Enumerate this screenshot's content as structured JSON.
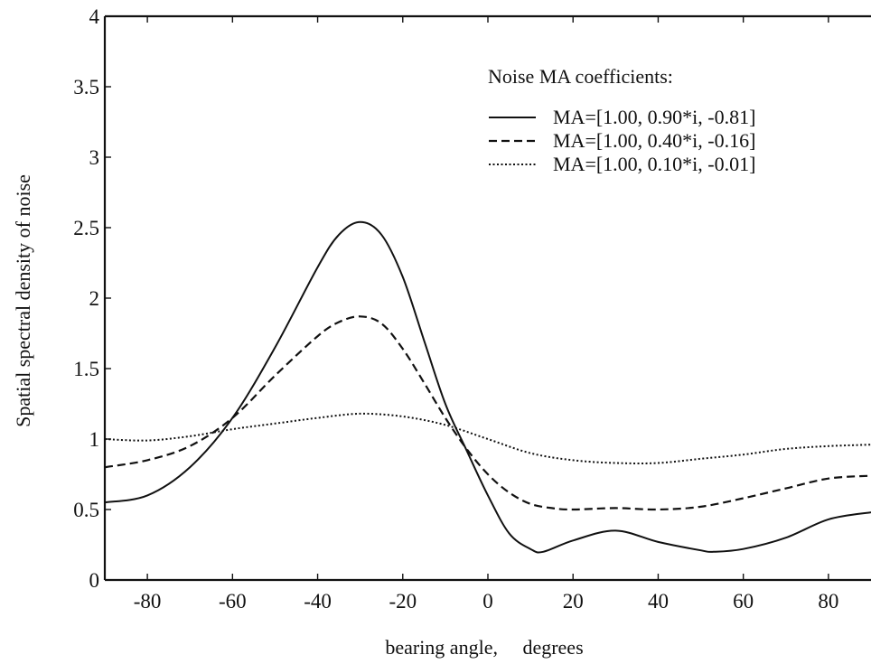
{
  "chart_data": {
    "type": "line",
    "title": "",
    "xlabel": "bearing angle,     degrees",
    "ylabel": "Spatial spectral density of noise",
    "xlim": [
      -90,
      90
    ],
    "ylim": [
      0,
      4
    ],
    "x_ticks": [
      -80,
      -60,
      -40,
      -20,
      0,
      20,
      40,
      60,
      80
    ],
    "x_tick_labels": [
      "-80",
      "-60",
      "-40",
      "-20",
      "0",
      "20",
      "40",
      "60",
      "80"
    ],
    "y_ticks": [
      0,
      0.5,
      1,
      1.5,
      2,
      2.5,
      3,
      3.5,
      4
    ],
    "y_tick_labels": [
      "0",
      "0.5",
      "1",
      "1.5",
      "2",
      "2.5",
      "3",
      "3.5",
      "4"
    ],
    "grid": false,
    "legend": {
      "title": "Noise MA coefficients:",
      "placement": "top-right"
    },
    "series": [
      {
        "name": "MA=[1.00, 0.90*i, -0.81]",
        "style": "solid",
        "x": [
          -90,
          -80,
          -70,
          -60,
          -50,
          -40,
          -35,
          -30,
          -25,
          -20,
          -15,
          -10,
          -5,
          0,
          5,
          10,
          13,
          20,
          30,
          40,
          50,
          53,
          60,
          70,
          80,
          90
        ],
        "y": [
          0.55,
          0.6,
          0.8,
          1.15,
          1.65,
          2.22,
          2.45,
          2.54,
          2.45,
          2.15,
          1.7,
          1.25,
          0.92,
          0.6,
          0.33,
          0.22,
          0.2,
          0.28,
          0.35,
          0.27,
          0.21,
          0.2,
          0.22,
          0.3,
          0.43,
          0.48
        ]
      },
      {
        "name": "MA=[1.00, 0.40*i, -0.16]",
        "style": "dashed",
        "x": [
          -90,
          -80,
          -70,
          -60,
          -50,
          -40,
          -35,
          -30,
          -25,
          -20,
          -15,
          -10,
          -5,
          0,
          5,
          10,
          15,
          20,
          30,
          40,
          50,
          60,
          70,
          80,
          90
        ],
        "y": [
          0.8,
          0.85,
          0.95,
          1.15,
          1.45,
          1.73,
          1.83,
          1.87,
          1.82,
          1.64,
          1.4,
          1.15,
          0.93,
          0.75,
          0.62,
          0.54,
          0.51,
          0.5,
          0.51,
          0.5,
          0.52,
          0.58,
          0.65,
          0.72,
          0.74
        ]
      },
      {
        "name": "MA=[1.00, 0.10*i, -0.01]",
        "style": "dotted",
        "x": [
          -90,
          -80,
          -70,
          -60,
          -50,
          -40,
          -30,
          -20,
          -10,
          0,
          10,
          20,
          30,
          40,
          50,
          60,
          70,
          80,
          90
        ],
        "y": [
          1.0,
          0.99,
          1.02,
          1.07,
          1.11,
          1.15,
          1.18,
          1.16,
          1.1,
          1.0,
          0.9,
          0.85,
          0.83,
          0.83,
          0.86,
          0.89,
          0.93,
          0.95,
          0.96
        ]
      }
    ]
  }
}
